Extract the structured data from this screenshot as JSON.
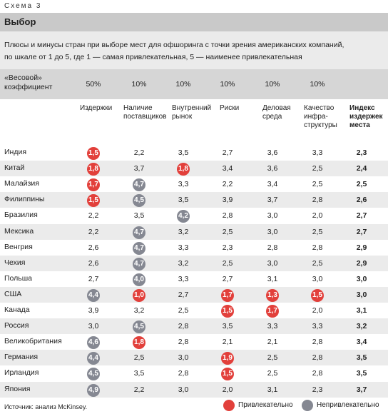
{
  "scheme_label": "Схема 3",
  "title": "Выбор",
  "description": [
    "Плюсы и минусы стран при выборе мест для офшоринга с точки зрения американских компаний,",
    "по шкале от 1 до 5, где 1 — самая привлекательная, 5 — наименее привлекательная"
  ],
  "weight_label": [
    "«Весовой»",
    "коэффициент"
  ],
  "weights": [
    "50%",
    "10%",
    "10%",
    "10%",
    "10%",
    "10%"
  ],
  "columns": [
    [
      "Издержки"
    ],
    [
      "Наличие",
      "поставщиков"
    ],
    [
      "Внутренний",
      "рынок"
    ],
    [
      "Риски"
    ],
    [
      "Деловая",
      "среда"
    ],
    [
      "Качество",
      "инфра-",
      "структуры"
    ]
  ],
  "index_header": [
    "Индекс",
    "издержек",
    "места"
  ],
  "rows": [
    {
      "country": "Индия",
      "values": [
        "1,5",
        "2,2",
        "3,5",
        "2,7",
        "3,6",
        "3,3"
      ],
      "marks": [
        "red",
        "",
        "",
        "",
        "",
        ""
      ],
      "index": "2,3"
    },
    {
      "country": "Китай",
      "values": [
        "1,8",
        "3,7",
        "1,8",
        "3,4",
        "3,6",
        "2,5"
      ],
      "marks": [
        "red",
        "",
        "red",
        "",
        "",
        ""
      ],
      "index": "2,4"
    },
    {
      "country": "Малайзия",
      "values": [
        "1,7",
        "4,7",
        "3,3",
        "2,2",
        "3,4",
        "2,5"
      ],
      "marks": [
        "red",
        "gray",
        "",
        "",
        "",
        ""
      ],
      "index": "2,5"
    },
    {
      "country": "Филиппины",
      "values": [
        "1,5",
        "4,5",
        "3,5",
        "3,9",
        "3,7",
        "2,8"
      ],
      "marks": [
        "red",
        "gray",
        "",
        "",
        "",
        ""
      ],
      "index": "2,6"
    },
    {
      "country": "Бразилия",
      "values": [
        "2,2",
        "3,5",
        "4,2",
        "2,8",
        "3,0",
        "2,0"
      ],
      "marks": [
        "",
        "",
        "gray",
        "",
        "",
        ""
      ],
      "index": "2,7"
    },
    {
      "country": "Мексика",
      "values": [
        "2,2",
        "4,7",
        "3,2",
        "2,5",
        "3,0",
        "2,5"
      ],
      "marks": [
        "",
        "gray",
        "",
        "",
        "",
        ""
      ],
      "index": "2,7"
    },
    {
      "country": "Венгрия",
      "values": [
        "2,6",
        "4,7",
        "3,3",
        "2,3",
        "2,8",
        "2,8"
      ],
      "marks": [
        "",
        "gray",
        "",
        "",
        "",
        ""
      ],
      "index": "2,9"
    },
    {
      "country": "Чехия",
      "values": [
        "2,6",
        "4,7",
        "3,2",
        "2,5",
        "3,0",
        "2,5"
      ],
      "marks": [
        "",
        "gray",
        "",
        "",
        "",
        ""
      ],
      "index": "2,9"
    },
    {
      "country": "Польша",
      "values": [
        "2,7",
        "4,0",
        "3,3",
        "2,7",
        "3,1",
        "3,0"
      ],
      "marks": [
        "",
        "gray",
        "",
        "",
        "",
        ""
      ],
      "index": "3,0"
    },
    {
      "country": "США",
      "values": [
        "4,4",
        "1,0",
        "2,7",
        "1,7",
        "1,3",
        "1,5"
      ],
      "marks": [
        "gray",
        "red",
        "",
        "red",
        "red",
        "red"
      ],
      "index": "3,0"
    },
    {
      "country": "Канада",
      "values": [
        "3,9",
        "3,2",
        "2,5",
        "1,5",
        "1,7",
        "2,0"
      ],
      "marks": [
        "",
        "",
        "",
        "red",
        "red",
        ""
      ],
      "index": "3,1"
    },
    {
      "country": "Россия",
      "values": [
        "3,0",
        "4,5",
        "2,8",
        "3,5",
        "3,3",
        "3,3"
      ],
      "marks": [
        "",
        "gray",
        "",
        "",
        "",
        ""
      ],
      "index": "3,2"
    },
    {
      "country": "Великобритания",
      "values": [
        "4,6",
        "1,8",
        "2,8",
        "2,1",
        "2,1",
        "2,8"
      ],
      "marks": [
        "gray",
        "red",
        "",
        "",
        "",
        ""
      ],
      "index": "3,4"
    },
    {
      "country": "Германия",
      "values": [
        "4,4",
        "2,5",
        "3,0",
        "1,9",
        "2,5",
        "2,8"
      ],
      "marks": [
        "gray",
        "",
        "",
        "red",
        "",
        ""
      ],
      "index": "3,5"
    },
    {
      "country": "Ирландия",
      "values": [
        "4,5",
        "3,5",
        "2,8",
        "1,5",
        "2,5",
        "2,8"
      ],
      "marks": [
        "gray",
        "",
        "",
        "red",
        "",
        ""
      ],
      "index": "3,5"
    },
    {
      "country": "Япония",
      "values": [
        "4,9",
        "2,2",
        "3,0",
        "2,0",
        "3,1",
        "2,3"
      ],
      "marks": [
        "gray",
        "",
        "",
        "",
        "",
        ""
      ],
      "index": "3,7"
    }
  ],
  "source": "Источник: анализ McKinsey.",
  "legend": {
    "attractive": "Привлекательно",
    "unattractive": "Непривлекательно"
  },
  "colors": {
    "attractive": "#e2403b",
    "unattractive": "#858892",
    "title_bar": "#c9c9c9",
    "band": "#ebebeb"
  }
}
